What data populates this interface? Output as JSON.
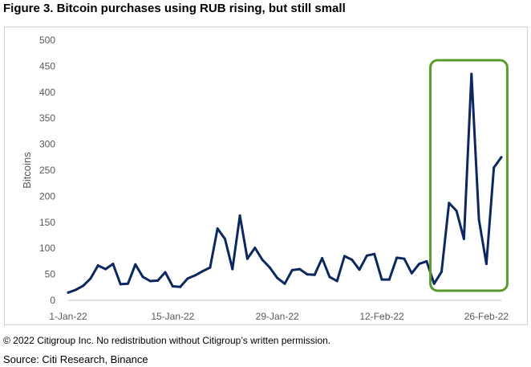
{
  "figure": {
    "title": "Figure 3. Bitcoin purchases using RUB rising, but still small",
    "copyright": "© 2022 Citigroup Inc. No redistribution without Citigroup’s written permission.",
    "source": "Source: Citi Research, Binance"
  },
  "colors": {
    "line": "#0d2760",
    "highlight": "#5b9a2c",
    "axis_text": "#595959",
    "frame": "#d0d0d0"
  },
  "chart_data": {
    "type": "line",
    "title": "",
    "xlabel": "",
    "ylabel": "Bitcoins",
    "ylim": [
      0,
      500
    ],
    "yticks": [
      0,
      50,
      100,
      150,
      200,
      250,
      300,
      350,
      400,
      450,
      500
    ],
    "xticks": [
      {
        "day": 1,
        "label": "1-Jan-22"
      },
      {
        "day": 15,
        "label": "15-Jan-22"
      },
      {
        "day": 29,
        "label": "29-Jan-22"
      },
      {
        "day": 43,
        "label": "12-Feb-22"
      },
      {
        "day": 57,
        "label": "26-Feb-22"
      }
    ],
    "grid": false,
    "highlight_range": {
      "from_day": 49.5,
      "to_day": 59.8
    },
    "series": [
      {
        "name": "",
        "x": [
          1,
          2,
          3,
          4,
          5,
          6,
          7,
          8,
          9,
          10,
          11,
          12,
          13,
          14,
          15,
          16,
          17,
          18,
          19,
          20,
          21,
          22,
          23,
          24,
          25,
          26,
          27,
          28,
          29,
          30,
          31,
          32,
          33,
          34,
          35,
          36,
          37,
          38,
          39,
          40,
          41,
          42,
          43,
          44,
          45,
          46,
          47,
          48,
          49,
          50,
          51,
          52,
          53,
          54,
          55,
          56,
          57,
          58,
          59
        ],
        "values": [
          15,
          20,
          28,
          42,
          67,
          60,
          70,
          31,
          32,
          69,
          45,
          37,
          38,
          54,
          27,
          26,
          42,
          48,
          56,
          63,
          138,
          118,
          60,
          163,
          80,
          101,
          78,
          63,
          43,
          32,
          58,
          60,
          50,
          49,
          81,
          45,
          37,
          85,
          78,
          59,
          86,
          89,
          40,
          40,
          82,
          80,
          52,
          70,
          75,
          32,
          55,
          187,
          172,
          118,
          435,
          155,
          70,
          255,
          275
        ]
      }
    ]
  }
}
